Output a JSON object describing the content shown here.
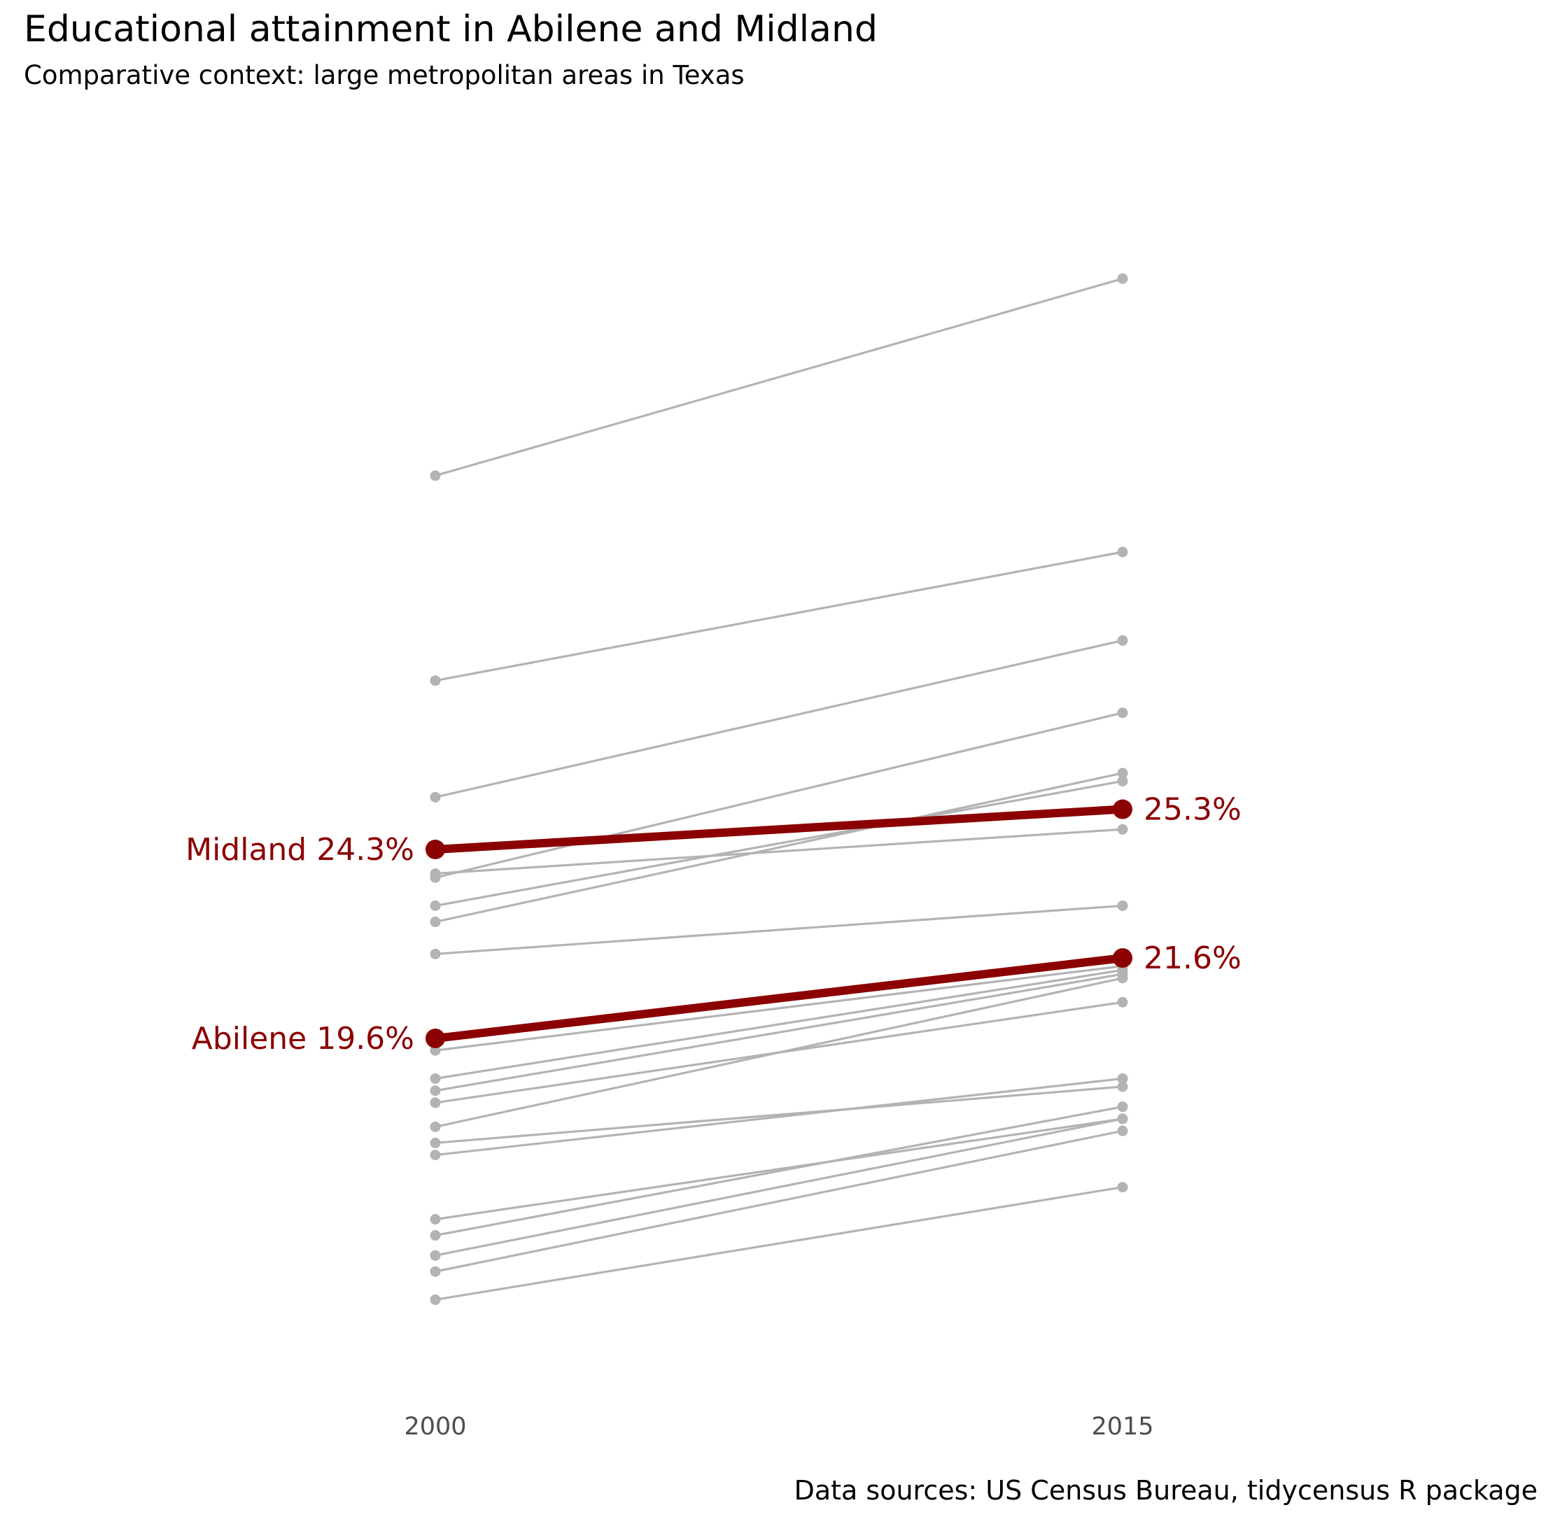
{
  "chart_data": {
    "type": "line",
    "title": "Educational attainment in Abilene and Midland",
    "subtitle": "Comparative context: large metropolitan areas in Texas",
    "caption": "Data sources: US Census Bureau, tidycensus R package",
    "x": [
      "2000",
      "2015"
    ],
    "xlabel": "",
    "ylabel": "",
    "grid": false,
    "legend": "none",
    "colors": {
      "highlight": "#8b0000",
      "context": "#b3b3b3"
    },
    "highlight_series": [
      {
        "name": "Midland",
        "values": [
          24.3,
          25.3
        ],
        "label_2000": "Midland 24.3%",
        "label_2015": "25.3%"
      },
      {
        "name": "Abilene",
        "values": [
          19.6,
          21.6
        ],
        "label_2000": "Abilene 19.6%",
        "label_2015": "21.6%"
      }
    ],
    "context_series": [
      {
        "values": [
          33.6,
          38.5
        ]
      },
      {
        "values": [
          28.5,
          31.7
        ]
      },
      {
        "values": [
          25.6,
          29.5
        ]
      },
      {
        "values": [
          23.6,
          27.7
        ]
      },
      {
        "values": [
          22.5,
          26.2
        ]
      },
      {
        "values": [
          23.7,
          24.8
        ]
      },
      {
        "values": [
          21.7,
          22.9
        ]
      },
      {
        "values": [
          19.3,
          21.4
        ]
      },
      {
        "values": [
          18.6,
          21.3
        ]
      },
      {
        "values": [
          18.3,
          21.2
        ]
      },
      {
        "values": [
          18.0,
          20.5
        ]
      },
      {
        "values": [
          17.4,
          21.1
        ]
      },
      {
        "values": [
          17.0,
          18.4
        ]
      },
      {
        "values": [
          16.7,
          18.6
        ]
      },
      {
        "values": [
          15.1,
          17.6
        ]
      },
      {
        "values": [
          14.7,
          17.9
        ]
      },
      {
        "values": [
          14.2,
          17.6
        ]
      },
      {
        "values": [
          13.8,
          17.3
        ]
      },
      {
        "values": [
          13.1,
          15.9
        ]
      },
      {
        "values": [
          22.9,
          26.0
        ]
      }
    ]
  }
}
